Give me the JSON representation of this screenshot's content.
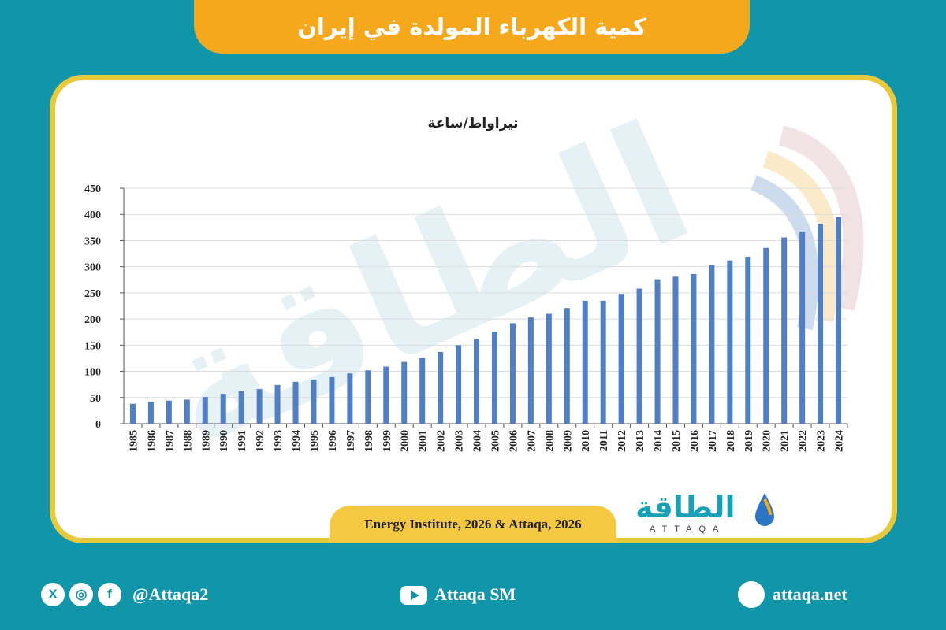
{
  "header": {
    "title": "كمية الكهرباء المولدة في إيران"
  },
  "colors": {
    "background": "#1196a9",
    "banner": "#f5a81c",
    "card_border": "#e8c93a",
    "bar": "#4f7fc4",
    "source_tab": "#f5c842"
  },
  "chart_data": {
    "type": "bar",
    "ylabel": "تيراواط/ساعة",
    "ylim": [
      0,
      450
    ],
    "yticks": [
      0,
      50,
      100,
      150,
      200,
      250,
      300,
      350,
      400,
      450
    ],
    "grid": true,
    "categories": [
      "1985",
      "1986",
      "1987",
      "1988",
      "1989",
      "1990",
      "1991",
      "1992",
      "1993",
      "1994",
      "1995",
      "1996",
      "1997",
      "1998",
      "1999",
      "2000",
      "2001",
      "2002",
      "2003",
      "2004",
      "2005",
      "2006",
      "2007",
      "2008",
      "2009",
      "2010",
      "2011",
      "2012",
      "2013",
      "2014",
      "2015",
      "2016",
      "2017",
      "2018",
      "2019",
      "2020",
      "2021",
      "2022",
      "2023",
      "2024"
    ],
    "values": [
      38,
      42,
      44,
      46,
      51,
      57,
      62,
      66,
      74,
      80,
      84,
      89,
      96,
      102,
      109,
      118,
      126,
      137,
      150,
      162,
      176,
      192,
      203,
      210,
      221,
      235,
      235,
      248,
      258,
      276,
      281,
      286,
      304,
      312,
      319,
      336,
      356,
      367,
      382,
      395
    ]
  },
  "source": "Energy Institute, 2026 & Attaqa, 2026",
  "logo": {
    "arabic": "الطاقة",
    "latin": "ATTAQA"
  },
  "watermark": "الطاقة",
  "footer": {
    "handle": "@Attaqa2",
    "youtube": "Attaqa SM",
    "website": "attaqa.net",
    "social_icons": [
      "x-icon",
      "instagram-icon",
      "facebook-icon"
    ]
  }
}
